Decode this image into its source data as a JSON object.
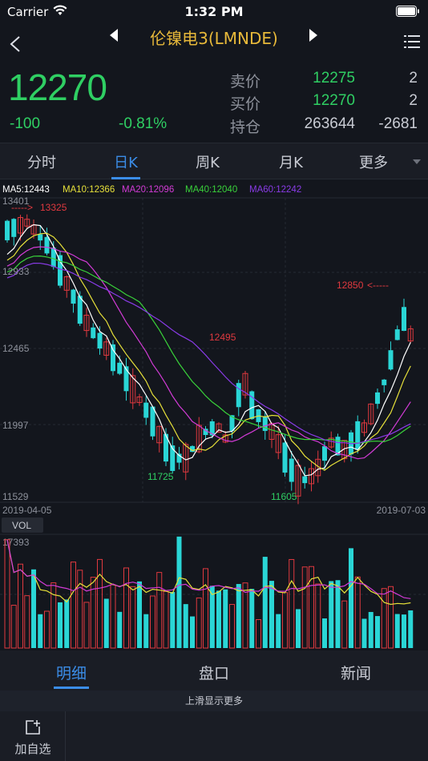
{
  "status_bar": {
    "carrier": "Carrier",
    "time": "1:32 PM"
  },
  "nav": {
    "title": "伦镍电3(LMNDE)"
  },
  "quote": {
    "last_price": "12270",
    "change": "-100",
    "change_pct": "-0.81%",
    "rows": [
      {
        "label": "卖价",
        "price": "12275",
        "volume": "2"
      },
      {
        "label": "买价",
        "price": "12270",
        "volume": "2"
      },
      {
        "label": "持仓",
        "price": "263644",
        "volume": "-2681"
      }
    ]
  },
  "period_tabs": [
    {
      "label": "分时"
    },
    {
      "label": "日K"
    },
    {
      "label": "周K"
    },
    {
      "label": "月K"
    },
    {
      "label": "更多"
    }
  ],
  "active_period": "日K",
  "colors": {
    "up": "#e0393f",
    "down": "#2ad6d6",
    "accent": "#3b8de8",
    "price_green": "#2fcf63",
    "title_gold": "#e8b93a"
  },
  "chart_data": {
    "type": "candlestick",
    "ma_legend": [
      {
        "label": "MA5:12443",
        "color": "#ffffff"
      },
      {
        "label": "MA10:12366",
        "color": "#e6e03a"
      },
      {
        "label": "MA20:12096",
        "color": "#d23bd6"
      },
      {
        "label": "MA40:12040",
        "color": "#39d23a"
      },
      {
        "label": "MA60:12242",
        "color": "#8a3be8"
      }
    ],
    "y_ticks": [
      "13401",
      "12933",
      "12465",
      "11997",
      "11529"
    ],
    "x_start": "2019-04-05",
    "x_end": "2019-07-03",
    "annotations": {
      "high_left": "13325",
      "high_right": "12850",
      "mid_high": "12495",
      "low_left": "11725",
      "low_right": "11605"
    },
    "volume_label": "VOL",
    "volume_max": "17393"
  },
  "bottom_tabs": [
    {
      "label": "明细"
    },
    {
      "label": "盘口"
    },
    {
      "label": "新闻"
    }
  ],
  "slide_hint": "上滑显示更多",
  "footer": {
    "add_label": "加自选"
  }
}
